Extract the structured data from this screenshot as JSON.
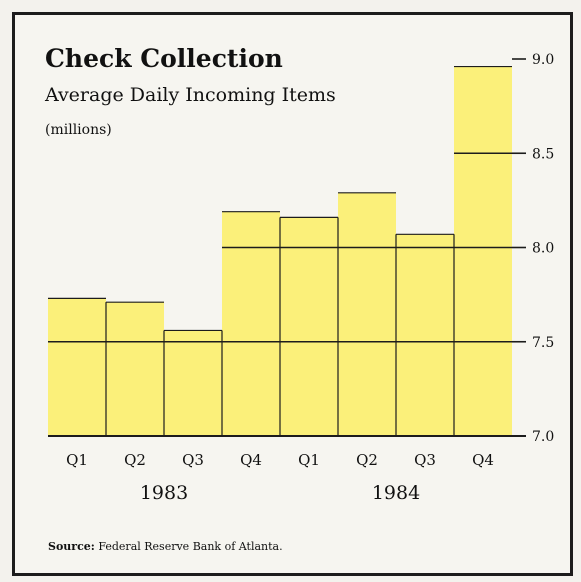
{
  "chart_data": {
    "type": "bar",
    "title": "Check Collection",
    "subtitle": "Average Daily Incoming Items",
    "units": "(millions)",
    "categories": [
      "Q1",
      "Q2",
      "Q3",
      "Q4",
      "Q1",
      "Q2",
      "Q3",
      "Q4"
    ],
    "year_labels": [
      "1983",
      "1984"
    ],
    "values": [
      7.73,
      7.71,
      7.56,
      8.19,
      8.16,
      8.29,
      8.07,
      8.96
    ],
    "ylim": [
      7.0,
      9.0
    ],
    "yticks": [
      "7.0",
      "7.5",
      "8.0",
      "8.5",
      "9.0"
    ],
    "grid": true,
    "bar_color": "#fbf07a",
    "line_color": "#1c1c1c"
  },
  "source": {
    "label": "Source:",
    "text": "Federal Reserve Bank of Atlanta."
  }
}
